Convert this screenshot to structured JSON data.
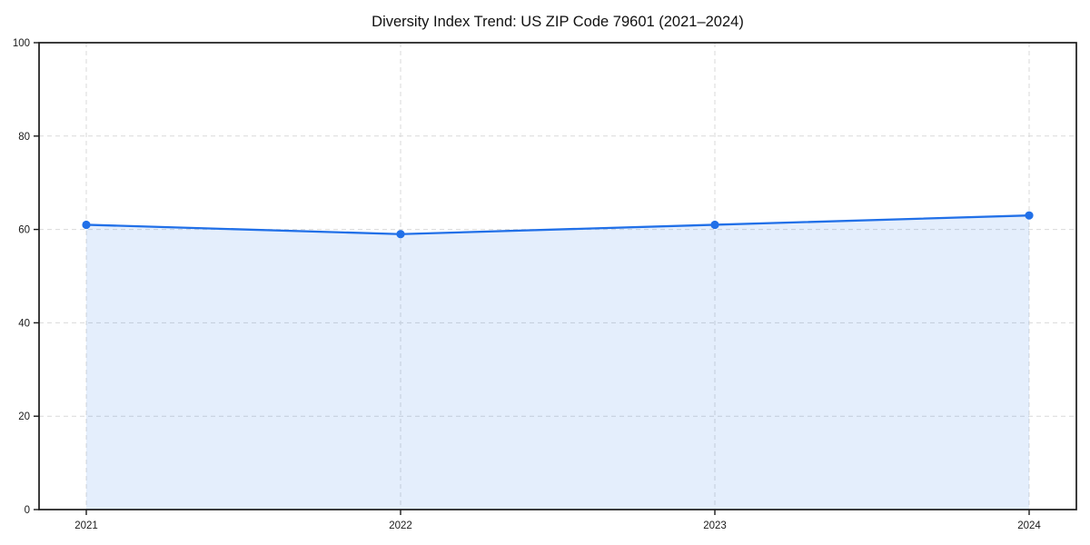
{
  "chart_data": {
    "type": "line",
    "title": "Diversity Index Trend: US ZIP Code 79601 (2021–2024)",
    "x": [
      2021,
      2022,
      2023,
      2024
    ],
    "x_tick_labels": [
      "2021",
      "2022",
      "2023",
      "2024"
    ],
    "series": [
      {
        "name": "Diversity Index",
        "values": [
          61,
          59,
          61,
          63
        ]
      }
    ],
    "y_ticks": [
      0,
      20,
      40,
      60,
      80,
      100
    ],
    "y_tick_labels": [
      "0",
      "20",
      "40",
      "60",
      "80",
      "100"
    ],
    "ylim": [
      0,
      100
    ],
    "xlabel": "",
    "ylabel": "",
    "grid": true,
    "grid_style": "dashed",
    "legend_position": "none",
    "marker": "circle",
    "area_fill_under_line": true,
    "colors": {
      "line": "#2170e8",
      "marker": "#2170e8",
      "area_fill": "#2170e8",
      "area_fill_opacity": 0.12,
      "grid": "#d9d9d9",
      "spine": "#1a1a1a",
      "tick_text": "#1a1a1a",
      "background": "#ffffff"
    }
  }
}
